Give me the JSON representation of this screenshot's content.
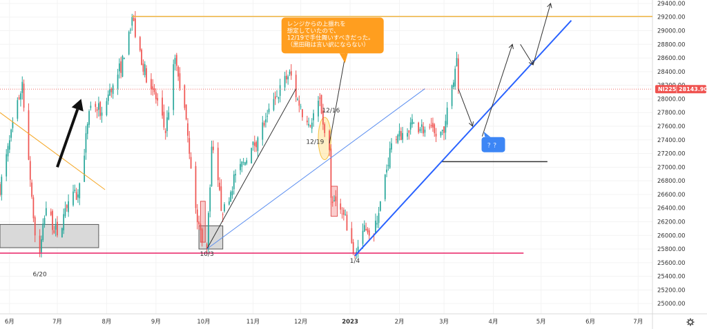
{
  "chart_data": {
    "type": "candlestick",
    "symbol": "NI225",
    "last_price": "28143.90",
    "last_value": 28143.9,
    "ylim": [
      24850,
      29450
    ],
    "y_ticks": [
      25000,
      25200,
      25400,
      25600,
      25800,
      26000,
      26200,
      26400,
      26600,
      26800,
      27000,
      27200,
      27400,
      27600,
      27800,
      28000,
      28200,
      28400,
      28600,
      28800,
      29000,
      29200,
      29400
    ],
    "y_tick_labels": [
      "25000.00",
      "25200.00",
      "25400.00",
      "25600.00",
      "25800.00",
      "26000.00",
      "26200.00",
      "26400.00",
      "26600.00",
      "26800.00",
      "27000.00",
      "27200.00",
      "27400.00",
      "27600.00",
      "27800.00",
      "28000.00",
      "28200.00",
      "28400.00",
      "28600.00",
      "28800.00",
      "29000.00",
      "29200.00",
      "29400.00"
    ],
    "x_ticks": [
      {
        "label": "6月",
        "date": "2022-06-01"
      },
      {
        "label": "7月",
        "date": "2022-07-01"
      },
      {
        "label": "8月",
        "date": "2022-08-01"
      },
      {
        "label": "9月",
        "date": "2022-09-01"
      },
      {
        "label": "10月",
        "date": "2022-10-01"
      },
      {
        "label": "11月",
        "date": "2022-11-01"
      },
      {
        "label": "12月",
        "date": "2022-12-01"
      },
      {
        "label": "2023",
        "date": "2023-01-01"
      },
      {
        "label": "2月",
        "date": "2023-02-01"
      },
      {
        "label": "3月",
        "date": "2023-03-01"
      },
      {
        "label": "4月",
        "date": "2023-04-01"
      },
      {
        "label": "5月",
        "date": "2023-05-01"
      },
      {
        "label": "6月",
        "date": "2023-06-01"
      },
      {
        "label": "7月",
        "date": "2023-07-01"
      }
    ],
    "x_range": [
      "2022-05-26",
      "2023-07-10"
    ],
    "anchors": [
      {
        "date": "2022-05-26",
        "close": 26700
      },
      {
        "date": "2022-06-07",
        "close": 28000
      },
      {
        "date": "2022-06-09",
        "close": 28250
      },
      {
        "date": "2022-06-17",
        "close": 26000
      },
      {
        "date": "2022-06-20",
        "close": 25750
      },
      {
        "date": "2022-06-24",
        "close": 26400
      },
      {
        "date": "2022-07-01",
        "close": 26000
      },
      {
        "date": "2022-07-08",
        "close": 26500
      },
      {
        "date": "2022-07-14",
        "close": 26600
      },
      {
        "date": "2022-07-22",
        "close": 27900
      },
      {
        "date": "2022-07-29",
        "close": 27800
      },
      {
        "date": "2022-08-05",
        "close": 28200
      },
      {
        "date": "2022-08-12",
        "close": 28600
      },
      {
        "date": "2022-08-17",
        "close": 29200
      },
      {
        "date": "2022-08-23",
        "close": 28500
      },
      {
        "date": "2022-08-31",
        "close": 28100
      },
      {
        "date": "2022-09-07",
        "close": 27500
      },
      {
        "date": "2022-09-13",
        "close": 28600
      },
      {
        "date": "2022-09-20",
        "close": 27700
      },
      {
        "date": "2022-09-26",
        "close": 26400
      },
      {
        "date": "2022-09-30",
        "close": 25900
      },
      {
        "date": "2022-10-03",
        "close": 25800
      },
      {
        "date": "2022-10-06",
        "close": 27300
      },
      {
        "date": "2022-10-13",
        "close": 26300
      },
      {
        "date": "2022-10-21",
        "close": 26900
      },
      {
        "date": "2022-10-28",
        "close": 27100
      },
      {
        "date": "2022-11-09",
        "close": 27700
      },
      {
        "date": "2022-11-15",
        "close": 28000
      },
      {
        "date": "2022-11-24",
        "close": 28400
      },
      {
        "date": "2022-11-30",
        "close": 27900
      },
      {
        "date": "2022-12-07",
        "close": 27600
      },
      {
        "date": "2022-12-13",
        "close": 28000
      },
      {
        "date": "2022-12-16",
        "close": 27500
      },
      {
        "date": "2022-12-19",
        "close": 27250
      },
      {
        "date": "2022-12-20",
        "close": 26550
      },
      {
        "date": "2022-12-28",
        "close": 26300
      },
      {
        "date": "2023-01-04",
        "close": 25700
      },
      {
        "date": "2023-01-10",
        "close": 26150
      },
      {
        "date": "2023-01-16",
        "close": 26000
      },
      {
        "date": "2023-01-20",
        "close": 26500
      },
      {
        "date": "2023-01-27",
        "close": 27350
      },
      {
        "date": "2023-02-03",
        "close": 27500
      },
      {
        "date": "2023-02-10",
        "close": 27650
      },
      {
        "date": "2023-02-17",
        "close": 27550
      },
      {
        "date": "2023-02-24",
        "close": 27450
      },
      {
        "date": "2023-03-01",
        "close": 27500
      },
      {
        "date": "2023-03-06",
        "close": 28200
      },
      {
        "date": "2023-03-09",
        "close": 28600
      },
      {
        "date": "2023-03-10",
        "close": 28143.9
      }
    ],
    "horizontal_lines": [
      {
        "name": "resistance-line",
        "color": "#f0b642",
        "from": "2022-08-17",
        "to": "2023-07-10",
        "y": 29210
      },
      {
        "name": "support-line",
        "color": "#e91e63",
        "from": "2022-05-26",
        "to": "2023-04-20",
        "y": 25740
      },
      {
        "name": "target-base-line",
        "color": "#333333",
        "from": "2023-02-27",
        "to": "2023-05-05",
        "y": 27080
      }
    ],
    "trend_lines": [
      {
        "name": "downtrend-line",
        "color": "#f5a623",
        "width": 1,
        "points": [
          [
            "2022-05-26",
            27800
          ],
          [
            "2022-07-31",
            26670
          ]
        ]
      },
      {
        "name": "channel-line-black",
        "color": "#333333",
        "width": 1,
        "points": [
          [
            "2022-10-03",
            25800
          ],
          [
            "2022-11-28",
            28150
          ]
        ]
      },
      {
        "name": "channel-line-blue-thin",
        "color": "#5b8ef0",
        "width": 1,
        "points": [
          [
            "2022-10-03",
            25800
          ],
          [
            "2023-02-17",
            28150
          ]
        ]
      },
      {
        "name": "uptrend-line-blue",
        "color": "#2962ff",
        "width": 2,
        "points": [
          [
            "2023-01-04",
            25700
          ],
          [
            "2023-05-20",
            29150
          ]
        ]
      }
    ],
    "arrows": [
      {
        "name": "big-up-arrow",
        "color": "#111111",
        "width": 4,
        "from": [
          "2022-07-01",
          27000
        ],
        "to": [
          "2022-07-16",
          28000
        ]
      },
      {
        "name": "arrow-1219-up",
        "color": "#333333",
        "width": 1,
        "from": [
          "2022-12-19",
          27350
        ],
        "to": [
          "2022-12-31",
          28900
        ]
      },
      {
        "name": "scenario-arrow-down",
        "color": "#333333",
        "width": 1,
        "from": [
          "2023-03-10",
          28150
        ],
        "to": [
          "2023-03-19",
          27600
        ]
      },
      {
        "name": "scenario-arrow-up-1",
        "color": "#333333",
        "width": 1,
        "from": [
          "2023-03-25",
          27450
        ],
        "to": [
          "2023-04-13",
          28800
        ]
      },
      {
        "name": "scenario-arrow-down-2",
        "color": "#333333",
        "width": 1,
        "from": [
          "2023-04-18",
          28800
        ],
        "to": [
          "2023-04-26",
          28500
        ]
      },
      {
        "name": "scenario-arrow-up-2",
        "color": "#333333",
        "width": 1,
        "from": [
          "2023-04-26",
          28500
        ],
        "to": [
          "2023-05-07",
          29400
        ]
      }
    ],
    "rectangles": [
      {
        "name": "range-box-june",
        "fill": "#d9d9d9",
        "stroke": "#555555",
        "from": "2022-05-26",
        "to": "2022-07-27",
        "ylow": 25820,
        "yhigh": 26160
      },
      {
        "name": "range-box-october",
        "fill": "#d9d9d9",
        "stroke": "#555555",
        "from": "2022-09-28",
        "to": "2022-10-13",
        "ylow": 25800,
        "yhigh": 26140
      },
      {
        "name": "red-box-october",
        "fill": "rgba(240,80,80,0.28)",
        "stroke": "#e05555",
        "from": "2022-09-29",
        "to": "2022-10-02",
        "ylow": 25900,
        "yhigh": 26500
      },
      {
        "name": "red-box-december",
        "fill": "rgba(240,80,80,0.28)",
        "stroke": "#e05555",
        "from": "2022-12-20",
        "to": "2022-12-24",
        "ylow": 26280,
        "yhigh": 26720
      }
    ],
    "ellipses": [
      {
        "name": "highlight-ellipse-1216",
        "fill": "rgba(255,210,90,0.35)",
        "stroke": "#f5c242",
        "cx": "2022-12-16",
        "cy": 27420,
        "rx_days": 4,
        "ry_value": 310
      }
    ],
    "labels": [
      {
        "name": "label-6-20",
        "text": "6/20",
        "date": "2022-06-20",
        "y": 25400
      },
      {
        "name": "label-10-3",
        "text": "10/3",
        "date": "2022-10-03",
        "y": 25700
      },
      {
        "name": "label-1-4",
        "text": "1/4",
        "date": "2023-01-04",
        "y": 25600
      },
      {
        "name": "label-12-16",
        "text": "12/16",
        "date": "2022-12-20",
        "y": 27800
      },
      {
        "name": "label-12-19",
        "text": "12/19",
        "date": "2022-12-10",
        "y": 27340
      }
    ],
    "callouts": [
      {
        "name": "callout-note",
        "color": "#ff9e1f",
        "text_color": "#ffffff",
        "date": "2022-12-21",
        "y": 28930,
        "lines": [
          "レンジからの上振れを",
          "想定していたので、",
          "12/19で手仕舞いすべきだった。",
          "（黒田砲は言い訳にならない）"
        ]
      },
      {
        "name": "callout-question",
        "color": "#3d86f5",
        "text_color": "#ffffff",
        "date": "2023-04-01",
        "y": 27330,
        "lines": [
          "？？"
        ]
      }
    ],
    "colors": {
      "up": "#26a69a",
      "down": "#ef5350",
      "price_badge": "#ef5350",
      "price_line": "#ef5350",
      "grid": "#f3f3f3",
      "axis_line": "#d9d9d9"
    },
    "grid": true
  },
  "ui": {
    "settings_icon": "gear-icon"
  }
}
